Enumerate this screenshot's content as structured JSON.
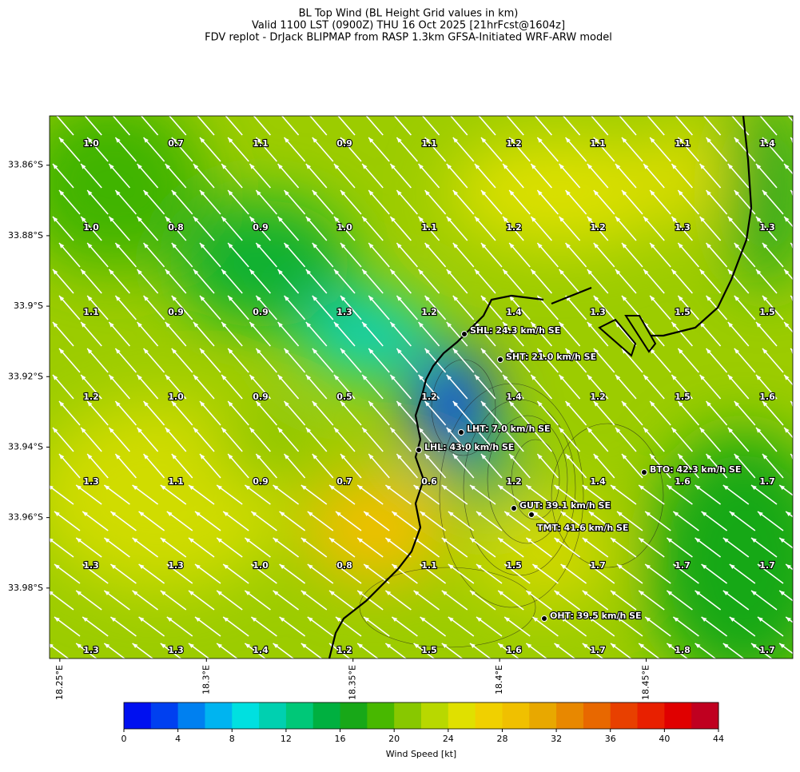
{
  "title": [
    "BL Top Wind (BL Height Grid values in km)",
    "Valid 1100 LST (0900Z) THU 16 Oct 2025 [21hrFcst@1604z]",
    "FDV replot - DrJack BLIPMAP from RASP 1.3km GFSA-Initiated WRF-ARW model"
  ],
  "map": {
    "lat_range": [
      33.846,
      34.0
    ],
    "lon_range": [
      18.2465,
      18.5
    ],
    "lat_ticks": [
      {
        "value": 33.86,
        "label": "33.86°S"
      },
      {
        "value": 33.88,
        "label": "33.88°S"
      },
      {
        "value": 33.9,
        "label": "33.9°S"
      },
      {
        "value": 33.92,
        "label": "33.92°S"
      },
      {
        "value": 33.94,
        "label": "33.94°S"
      },
      {
        "value": 33.96,
        "label": "33.96°S"
      },
      {
        "value": 33.98,
        "label": "33.98°S"
      }
    ],
    "lon_ticks": [
      {
        "value": 18.25,
        "label": "18.25°E"
      },
      {
        "value": 18.3,
        "label": "18.3°E"
      },
      {
        "value": 18.35,
        "label": "18.35°E"
      },
      {
        "value": 18.4,
        "label": "18.4°E"
      },
      {
        "value": 18.45,
        "label": "18.45°E"
      }
    ],
    "grid_values": [
      [
        "1.0",
        "0.7",
        "1.1",
        "0.9",
        "1.1",
        "1.2",
        "1.1",
        "1.1",
        "1.4"
      ],
      [
        "1.0",
        "0.8",
        "0.9",
        "1.0",
        "1.1",
        "1.2",
        "1.2",
        "1.3",
        "1.3"
      ],
      [
        "1.1",
        "0.9",
        "0.9",
        "1.3",
        "1.2",
        "1.4",
        "1.3",
        "1.5",
        "1.5"
      ],
      [
        "1.2",
        "1.0",
        "0.9",
        "0.5",
        "1.2",
        "1.4",
        "1.2",
        "1.5",
        "1.6"
      ],
      [
        "1.3",
        "1.1",
        "0.9",
        "0.7",
        "0.6",
        "1.2",
        "1.4",
        "1.6",
        "1.7"
      ],
      [
        "1.3",
        "1.3",
        "1.0",
        "0.8",
        "1.1",
        "1.5",
        "1.7",
        "1.7",
        "1.7"
      ],
      [
        "1.3",
        "1.3",
        "1.4",
        "1.2",
        "1.5",
        "1.6",
        "1.7",
        "1.8",
        "1.7"
      ]
    ],
    "stations": [
      "SHL: 24.3 km/h SE",
      "SHT: 21.0 km/h SE",
      "LHT: 7.0 km/h SE",
      "LHL: 43.0 km/h SE",
      "BTO: 42.3 km/h SE",
      "GUT: 39.1 km/h SE",
      "TMT: 41.6 km/h SE",
      "OHT: 39.5 km/h SE"
    ]
  },
  "colorbar": {
    "label": "Wind Speed [kt]",
    "range": [
      0,
      44
    ],
    "ticks": [
      0,
      4,
      8,
      12,
      16,
      20,
      24,
      28,
      32,
      36,
      40,
      44
    ],
    "colors": [
      "#0010f0",
      "#0040f0",
      "#0080f0",
      "#00b4f0",
      "#00e0e0",
      "#00d0b0",
      "#00c878",
      "#00b040",
      "#18a818",
      "#48b800",
      "#88c800",
      "#b8d800",
      "#e0e000",
      "#f0d000",
      "#f0c000",
      "#e8a800",
      "#e88800",
      "#e86800",
      "#e84000",
      "#e82000",
      "#e00000",
      "#c00020"
    ]
  }
}
